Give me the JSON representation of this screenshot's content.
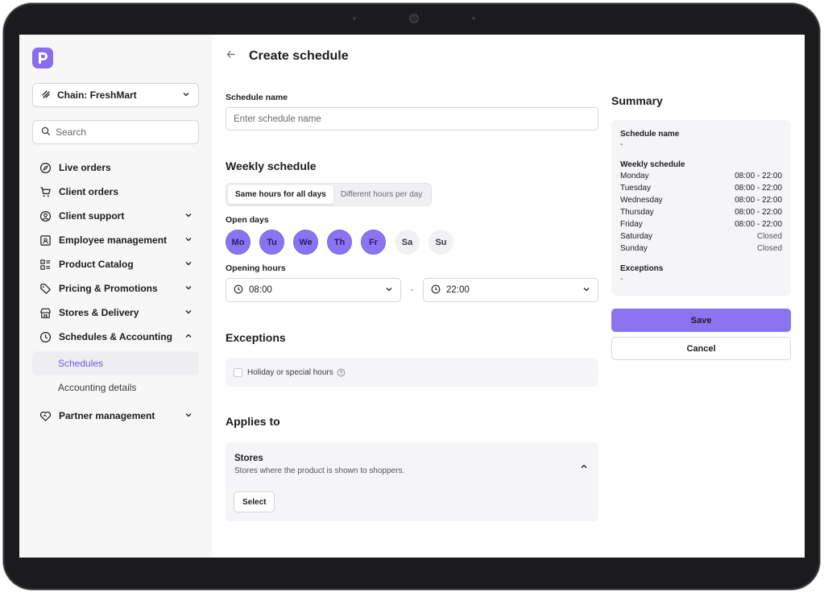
{
  "sidebar": {
    "chain_label": "Chain: FreshMart",
    "search_placeholder": "Search",
    "nav": [
      {
        "label": "Live orders"
      },
      {
        "label": "Client orders"
      },
      {
        "label": "Client support"
      },
      {
        "label": "Employee management"
      },
      {
        "label": "Product Catalog"
      },
      {
        "label": "Pricing & Promotions"
      },
      {
        "label": "Stores & Delivery"
      },
      {
        "label": "Schedules & Accounting"
      },
      {
        "label": "Partner management"
      }
    ],
    "sub_items": [
      {
        "label": "Schedules"
      },
      {
        "label": "Accounting details"
      }
    ]
  },
  "header": {
    "title": "Create schedule"
  },
  "form": {
    "schedule_name_label": "Schedule name",
    "schedule_name_placeholder": "Enter schedule name",
    "weekly_schedule_title": "Weekly schedule",
    "mode_options": [
      "Same hours for all days",
      "Different hours per day"
    ],
    "open_days_label": "Open days",
    "days": [
      {
        "label": "Mo",
        "selected": true
      },
      {
        "label": "Tu",
        "selected": true
      },
      {
        "label": "We",
        "selected": true
      },
      {
        "label": "Th",
        "selected": true
      },
      {
        "label": "Fr",
        "selected": true
      },
      {
        "label": "Sa",
        "selected": false
      },
      {
        "label": "Su",
        "selected": false
      }
    ],
    "opening_hours_label": "Opening hours",
    "open_time": "08:00",
    "time_separator": "-",
    "close_time": "22:00",
    "exceptions_title": "Exceptions",
    "holiday_checkbox_label": "Holiday or special hours",
    "applies_to_title": "Applies to",
    "stores_title": "Stores",
    "stores_desc": "Stores where the product is shown to shoppers.",
    "select_label": "Select"
  },
  "summary": {
    "title": "Summary",
    "schedule_name_label": "Schedule name",
    "schedule_name_value": "-",
    "weekly_schedule_label": "Weekly schedule",
    "rows": [
      {
        "day": "Monday",
        "hours": "08:00 - 22:00"
      },
      {
        "day": "Tuesday",
        "hours": "08:00 - 22:00"
      },
      {
        "day": "Wednesday",
        "hours": "08:00 - 22:00"
      },
      {
        "day": "Thursday",
        "hours": "08:00 - 22:00"
      },
      {
        "day": "Friday",
        "hours": "08:00 - 22:00"
      },
      {
        "day": "Saturday",
        "hours": "Closed"
      },
      {
        "day": "Sunday",
        "hours": "Closed"
      }
    ],
    "exceptions_label": "Exceptions",
    "exceptions_value": "-",
    "save_label": "Save",
    "cancel_label": "Cancel"
  },
  "colors": {
    "accent": "#8b74f0",
    "sidebar_bg": "#f7f7f8",
    "frame": "#1b1b1d"
  }
}
